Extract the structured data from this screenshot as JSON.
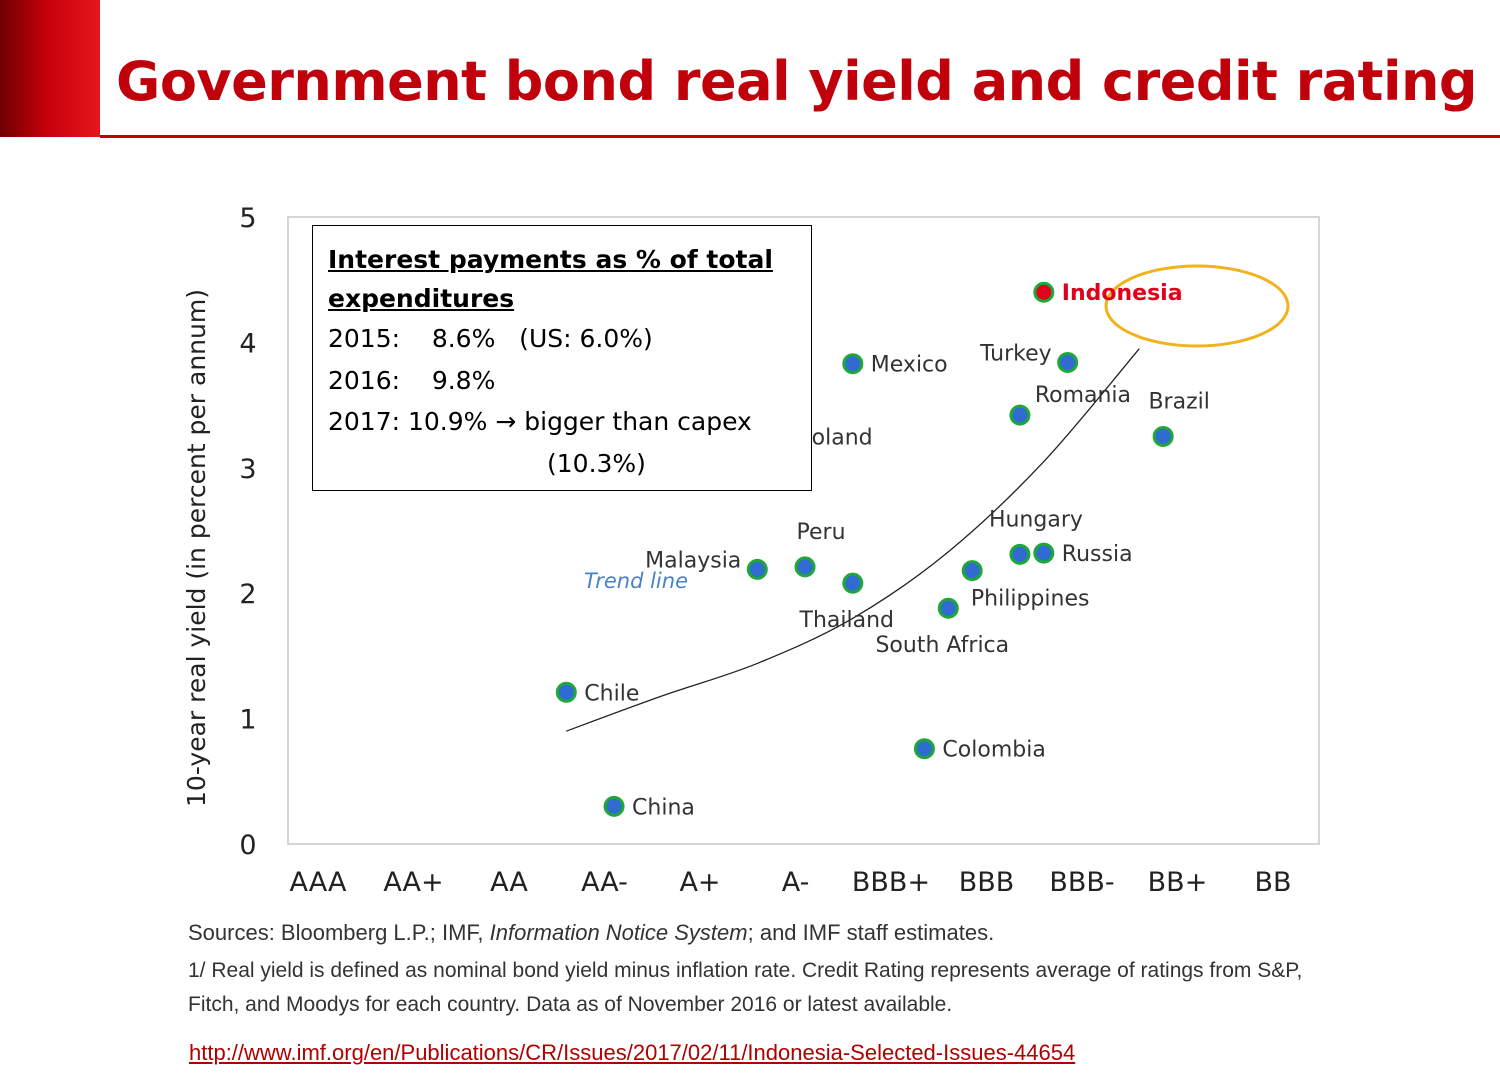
{
  "slide": {
    "title": "Government bond real yield and credit rating"
  },
  "annotation": {
    "heading": "Interest payments as % of total expenditures",
    "lines": [
      "2015:    8.6%   (US: 6.0%)",
      "2016:    9.8%",
      "2017: 10.9% → bigger than capex",
      "(10.3%)"
    ]
  },
  "footnotes": {
    "source_prefix": "Sources: Bloomberg L.P.; IMF, ",
    "source_italic": "Information Notice System",
    "source_suffix": "; and IMF staff estimates.",
    "note": "1/ Real yield is defined as nominal bond yield minus inflation rate. Credit Rating represents average of ratings from S&P, Fitch, and Moodys for each country. Data as of November 2016 or latest available."
  },
  "link": {
    "url": "http://www.imf.org/en/Publications/CR/Issues/2017/02/11/Indonesia-Selected-Issues-44654"
  },
  "colors": {
    "title_red": "#c0000a",
    "point_fill": "#2f6bd1",
    "point_stroke": "#1fa73a",
    "highlight_fill": "#e2001a",
    "highlight_ring": "#f2b21c",
    "trend_line_label": "#4a82c8"
  },
  "chart_data": {
    "type": "scatter",
    "xlabel": "",
    "ylabel": "10-year real yield (in percent per annum)",
    "x_categories": [
      "AAA",
      "AA+",
      "AA",
      "AA-",
      "A+",
      "A-",
      "BBB+",
      "BBB",
      "BBB-",
      "BB+",
      "BB"
    ],
    "ylim": [
      0,
      5
    ],
    "y_ticks": [
      0,
      1,
      2,
      3,
      4,
      5
    ],
    "grid": false,
    "points": [
      {
        "label": "Chile",
        "x": 2.6,
        "y": 1.21,
        "label_pos": "right"
      },
      {
        "label": "China",
        "x": 3.1,
        "y": 0.3,
        "label_pos": "right"
      },
      {
        "label": "Malaysia",
        "x": 4.6,
        "y": 2.19,
        "label_pos": "left"
      },
      {
        "label": "Peru",
        "x": 5.1,
        "y": 2.21,
        "label_pos": "above"
      },
      {
        "label": "Poland",
        "x": 4.85,
        "y": 3.25,
        "label_pos": "right"
      },
      {
        "label": "Thailand",
        "x": 5.6,
        "y": 2.08,
        "label_pos": "below"
      },
      {
        "label": "Mexico",
        "x": 5.6,
        "y": 3.83,
        "label_pos": "right"
      },
      {
        "label": "Colombia",
        "x": 6.35,
        "y": 0.76,
        "label_pos": "right"
      },
      {
        "label": "South Africa",
        "x": 6.6,
        "y": 1.88,
        "label_pos": "below"
      },
      {
        "label": "Philippines",
        "x": 6.85,
        "y": 2.18,
        "label_pos": "below-right"
      },
      {
        "label": "Hungary",
        "x": 7.35,
        "y": 2.31,
        "label_pos": "above"
      },
      {
        "label": "Russia",
        "x": 7.6,
        "y": 2.32,
        "label_pos": "right"
      },
      {
        "label": "Romania",
        "x": 7.35,
        "y": 3.42,
        "label_pos": "above-right"
      },
      {
        "label": "Turkey",
        "x": 7.85,
        "y": 3.84,
        "label_pos": "left"
      },
      {
        "label": "Indonesia",
        "x": 7.6,
        "y": 4.4,
        "label_pos": "right",
        "highlight": true
      },
      {
        "label": "Brazil",
        "x": 8.85,
        "y": 3.25,
        "label_pos": "above"
      }
    ],
    "trend_line": {
      "label": "Trend line",
      "x": [
        2.6,
        3.6,
        4.6,
        5.6,
        6.6,
        7.6,
        8.6
      ],
      "y": [
        0.9,
        1.18,
        1.44,
        1.8,
        2.33,
        3.05,
        3.95
      ]
    }
  }
}
